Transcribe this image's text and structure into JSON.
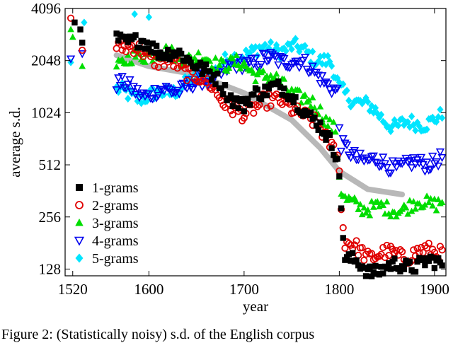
{
  "chart_data": {
    "type": "scatter",
    "xlabel": "year",
    "ylabel": "average s.d.",
    "xlim": [
      1512,
      1912
    ],
    "ylim_log2": [
      117,
      4096
    ],
    "y_scale": "log2",
    "x_ticks": [
      1520,
      1600,
      1700,
      1800,
      1900
    ],
    "y_ticks": [
      128,
      256,
      512,
      1024,
      2048,
      4096
    ],
    "legend_position": "bottom-left",
    "series": [
      {
        "name": "1-grams",
        "marker": "square",
        "color": "#000000",
        "anchors": [
          [
            1566,
            2800
          ],
          [
            1600,
            2500
          ],
          [
            1650,
            2000
          ],
          [
            1700,
            1100
          ],
          [
            1712,
            1300
          ],
          [
            1730,
            1500
          ],
          [
            1760,
            1150
          ],
          [
            1790,
            700
          ],
          [
            1798,
            600
          ],
          [
            1802,
            300
          ],
          [
            1806,
            150
          ],
          [
            1830,
            125
          ],
          [
            1870,
            135
          ],
          [
            1908,
            140
          ]
        ],
        "sparse": [
          [
            1522,
            3400
          ],
          [
            1530,
            2600
          ],
          [
            1528,
            3100
          ]
        ]
      },
      {
        "name": "2-grams",
        "marker": "open-circle",
        "color": "#e00000",
        "anchors": [
          [
            1566,
            2600
          ],
          [
            1600,
            2200
          ],
          [
            1650,
            1700
          ],
          [
            1700,
            950
          ],
          [
            1720,
            1250
          ],
          [
            1760,
            1050
          ],
          [
            1790,
            700
          ],
          [
            1799,
            620
          ],
          [
            1802,
            280
          ],
          [
            1806,
            180
          ],
          [
            1830,
            155
          ],
          [
            1870,
            155
          ],
          [
            1908,
            165
          ]
        ],
        "sparse": [
          [
            1518,
            3600
          ],
          [
            1530,
            2350
          ]
        ]
      },
      {
        "name": "3-grams",
        "marker": "triangle-up",
        "color": "#00dd00",
        "anchors": [
          [
            1566,
            1900
          ],
          [
            1600,
            2300
          ],
          [
            1650,
            2100
          ],
          [
            1700,
            1900
          ],
          [
            1740,
            1500
          ],
          [
            1780,
            1050
          ],
          [
            1796,
            820
          ],
          [
            1801,
            370
          ],
          [
            1806,
            310
          ],
          [
            1850,
            280
          ],
          [
            1908,
            320
          ]
        ],
        "sparse": [
          [
            1520,
            2800
          ],
          [
            1530,
            1900
          ],
          [
            1518,
            3100
          ]
        ]
      },
      {
        "name": "4-grams",
        "marker": "triangle-down",
        "color": "#0000ee",
        "anchors": [
          [
            1566,
            1500
          ],
          [
            1600,
            1300
          ],
          [
            1650,
            1500
          ],
          [
            1700,
            2000
          ],
          [
            1750,
            2100
          ],
          [
            1780,
            1700
          ],
          [
            1798,
            1300
          ],
          [
            1801,
            650
          ],
          [
            1830,
            540
          ],
          [
            1870,
            500
          ],
          [
            1908,
            560
          ]
        ],
        "sparse": [
          [
            1518,
            2100
          ],
          [
            1530,
            2250
          ]
        ]
      },
      {
        "name": "5-grams",
        "marker": "diamond",
        "color": "#00e5ff",
        "anchors": [
          [
            1566,
            1350
          ],
          [
            1600,
            1250
          ],
          [
            1650,
            1550
          ],
          [
            1700,
            2300
          ],
          [
            1750,
            2450
          ],
          [
            1790,
            2000
          ],
          [
            1800,
            1400
          ],
          [
            1830,
            1100
          ],
          [
            1860,
            850
          ],
          [
            1908,
            950
          ]
        ],
        "sparse": [
          [
            1518,
            2000
          ],
          [
            1532,
            3400
          ],
          [
            1585,
            3800
          ],
          [
            1600,
            3650
          ]
        ]
      }
    ],
    "trend": {
      "name": "trend",
      "color": "#b8b8b8",
      "x": [
        1566,
        1600,
        1650,
        1700,
        1750,
        1780,
        1800,
        1830,
        1866
      ],
      "y": [
        2200,
        1900,
        1700,
        1330,
        930,
        640,
        470,
        370,
        345
      ]
    }
  },
  "caption": "Figure 2: (Statistically noisy) s.d. of the English corpus"
}
